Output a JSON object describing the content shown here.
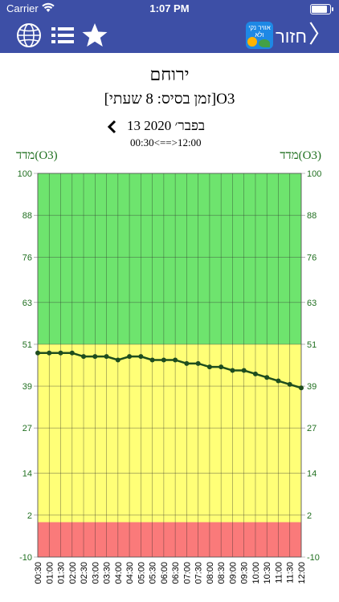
{
  "status_bar": {
    "carrier": "Carrier",
    "time": "1:07 PM",
    "battery_level": 0.95
  },
  "nav": {
    "back_label": "חזור",
    "logo_text": "אוויר נקי ולא",
    "icons": [
      "globe-icon",
      "list-icon",
      "star-icon"
    ],
    "colors": {
      "bar": "#3d4fa6"
    }
  },
  "header": {
    "station": "ירוחם",
    "subtitle": "[זמן בסיס: 8 שעתי]O3",
    "date": "13 בפבר׳ 2020",
    "range": "00:30<==>12:00"
  },
  "chart_data": {
    "type": "line",
    "ylabel_left": "מדד(O3)",
    "ylabel_right": "מדד(O3)",
    "ylim": [
      -10,
      100
    ],
    "y_ticks": [
      -10,
      2,
      14,
      27,
      39,
      51,
      63,
      76,
      88,
      100
    ],
    "bands": [
      {
        "from": 51,
        "to": 100,
        "color": "#6ee46e"
      },
      {
        "from": 0,
        "to": 51,
        "color": "#ffff77"
      },
      {
        "from": -10,
        "to": 0,
        "color": "#fa7a7a"
      }
    ],
    "categories": [
      "00:30",
      "01:00",
      "01:30",
      "02:00",
      "02:30",
      "03:00",
      "03:30",
      "04:00",
      "04:30",
      "05:00",
      "05:30",
      "06:00",
      "06:30",
      "07:00",
      "07:30",
      "08:00",
      "08:30",
      "09:00",
      "09:30",
      "10:00",
      "10:30",
      "11:00",
      "11:30",
      "12:00"
    ],
    "values": [
      48.5,
      48.5,
      48.5,
      48.5,
      47.5,
      47.5,
      47.5,
      46.5,
      47.5,
      47.5,
      46.5,
      46.5,
      46.5,
      45.5,
      45.5,
      44.5,
      44.5,
      43.5,
      43.5,
      42.5,
      41.5,
      40.5,
      39.5,
      38.5
    ],
    "line_color": "#1e4d1e",
    "grid": true
  }
}
